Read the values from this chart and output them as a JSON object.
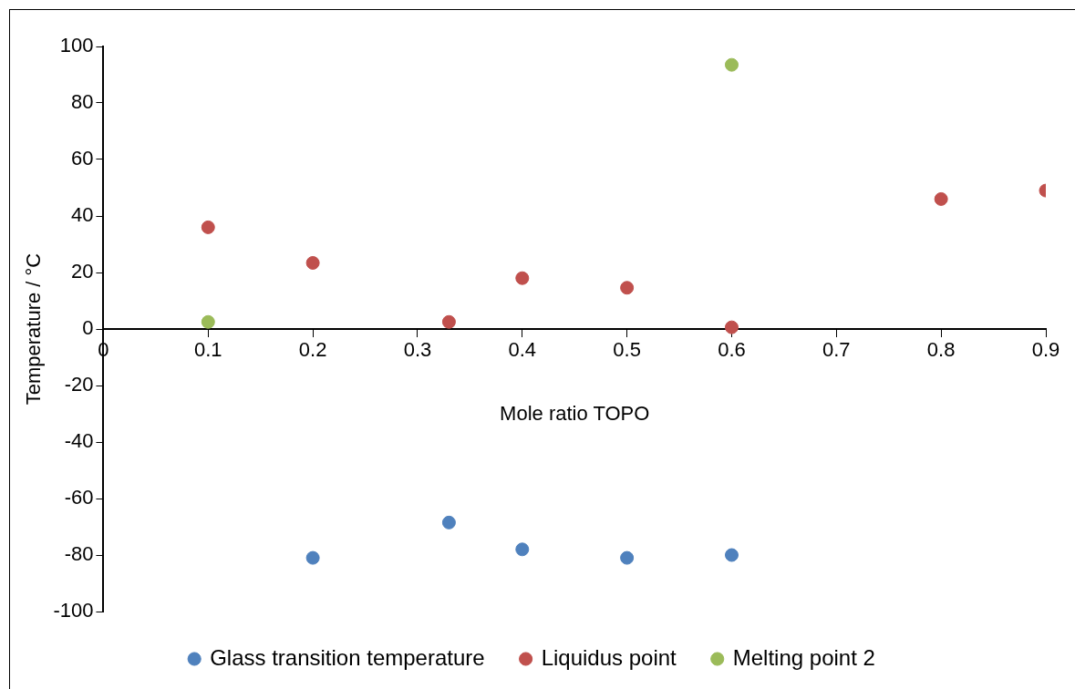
{
  "chart_data": {
    "type": "scatter",
    "xlabel": "Mole ratio TOPO",
    "ylabel": "Temperature / °C",
    "xlim": [
      0,
      0.9
    ],
    "xticks": [
      0,
      0.1,
      0.2,
      0.3,
      0.4,
      0.5,
      0.6,
      0.7,
      0.8,
      0.9
    ],
    "ylim": [
      -100,
      100
    ],
    "yticks": [
      -100,
      -80,
      -60,
      -40,
      -20,
      0,
      20,
      40,
      60,
      80,
      100
    ],
    "grid": false,
    "legend": "bottom",
    "marker": "circle",
    "series": [
      {
        "name": "Glass transition temperature",
        "color": "#4f81bd",
        "x": [
          0.2,
          0.33,
          0.4,
          0.5,
          0.6
        ],
        "values": [
          -81,
          -68.5,
          -78,
          -81,
          -80
        ]
      },
      {
        "name": "Liquidus point",
        "color": "#c0504d",
        "x": [
          0.1,
          0.2,
          0.33,
          0.4,
          0.5,
          0.6,
          0.8,
          0.9
        ],
        "values": [
          36,
          23.4,
          2.5,
          18,
          14.6,
          0.6,
          46,
          49
        ]
      },
      {
        "name": "Melting point 2",
        "color": "#9bbb59",
        "x": [
          0.1,
          0.6
        ],
        "values": [
          2.5,
          93.5
        ]
      }
    ]
  }
}
